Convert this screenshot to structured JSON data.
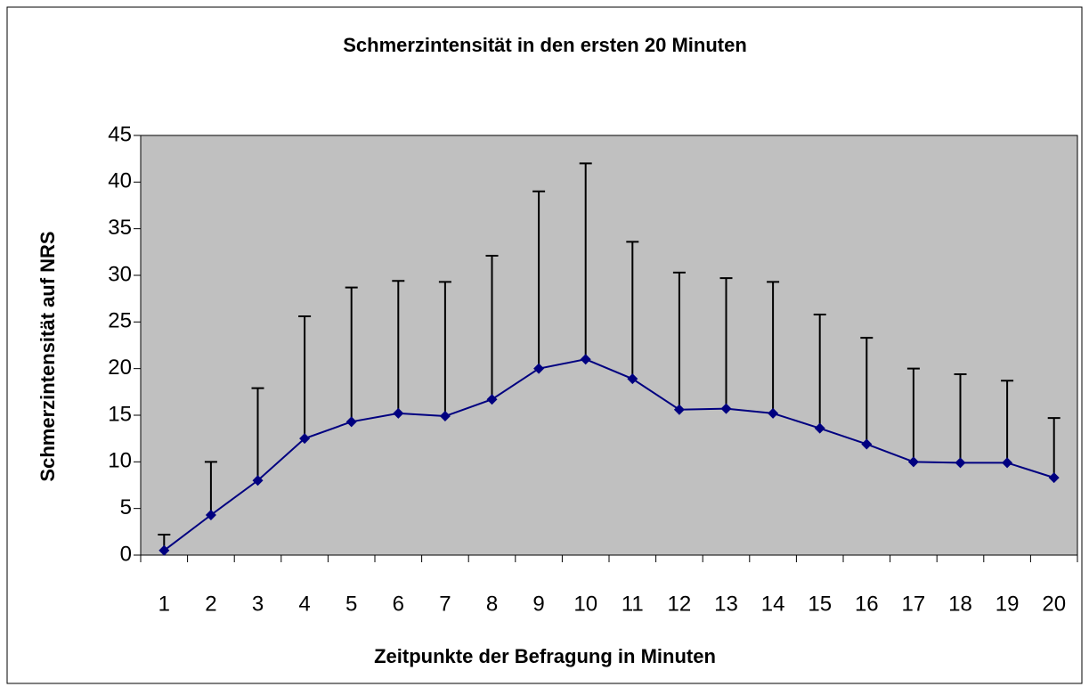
{
  "chart_data": {
    "type": "line",
    "title": "Schmerzintensität in den ersten 20 Minuten",
    "x_label": "Zeitpunkte der Befragung in Minuten",
    "y_label": "Schmerzintensität auf NRS",
    "categories": [
      "1",
      "2",
      "3",
      "4",
      "5",
      "6",
      "7",
      "8",
      "9",
      "10",
      "11",
      "12",
      "13",
      "14",
      "15",
      "16",
      "17",
      "18",
      "19",
      "20"
    ],
    "series": [
      {
        "name": "Schmerzintensität",
        "color": "#000080",
        "values": [
          0.5,
          4.3,
          8.0,
          12.5,
          14.3,
          15.2,
          14.9,
          16.7,
          20.0,
          21.0,
          18.9,
          15.6,
          15.7,
          15.2,
          13.6,
          11.9,
          10.0,
          9.9,
          9.9,
          8.3
        ],
        "errors": [
          1.7,
          5.7,
          9.9,
          13.1,
          14.4,
          14.2,
          14.4,
          15.4,
          19.0,
          21.0,
          14.7,
          14.7,
          14.0,
          14.1,
          12.2,
          11.4,
          10.0,
          9.5,
          8.8,
          6.4
        ]
      }
    ],
    "ylim": [
      0,
      45
    ],
    "yticks": [
      0,
      5,
      10,
      15,
      20,
      25,
      30,
      35,
      40,
      45
    ],
    "plot_background": "#c0c0c0"
  }
}
